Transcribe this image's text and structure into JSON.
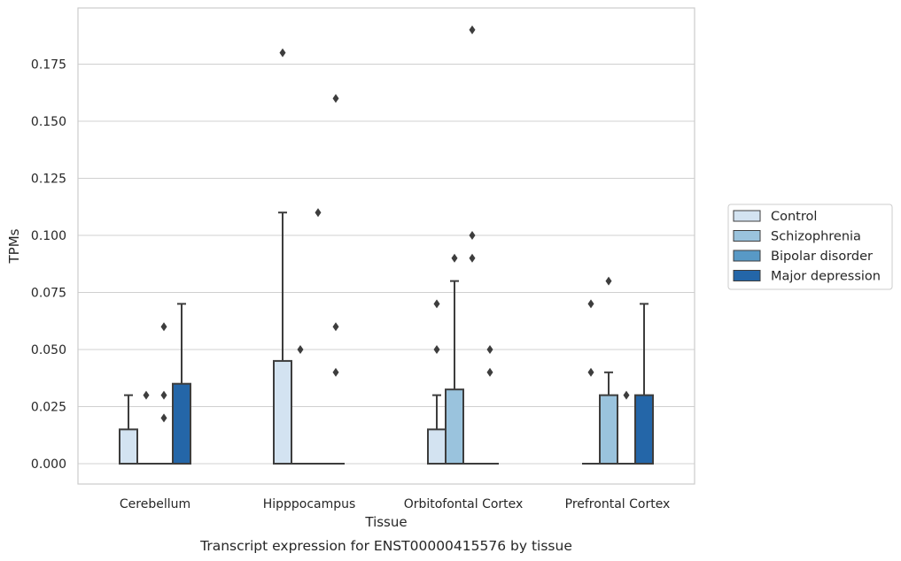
{
  "chart_data": {
    "type": "box",
    "title": "",
    "xlabel": "Tissue",
    "ylabel": "TPMs",
    "caption": "Transcript expression for ENST00000415576 by tissue",
    "ylim": [
      -0.019,
      0.199
    ],
    "yticks": [
      "0.000",
      "0.025",
      "0.050",
      "0.075",
      "0.100",
      "0.125",
      "0.150",
      "0.175"
    ],
    "grid": "horizontal",
    "legend_position": "right",
    "categories": [
      "Cerebellum",
      "Hipppocampus",
      "Orbitofontal Cortex",
      "Prefrontal Cortex"
    ],
    "series": [
      {
        "name": "Control",
        "color": "#d3e3f1",
        "boxes": [
          {
            "q1": 0.0,
            "median": 0.0,
            "q3": 0.015,
            "whisker_low": 0.0,
            "whisker_high": 0.03,
            "outliers": []
          },
          {
            "q1": 0.0,
            "median": 0.0,
            "q3": 0.045,
            "whisker_low": 0.0,
            "whisker_high": 0.11,
            "outliers": [
              0.18
            ]
          },
          {
            "q1": 0.0,
            "median": 0.0,
            "q3": 0.015,
            "whisker_low": 0.0,
            "whisker_high": 0.03,
            "outliers": [
              0.05,
              0.07
            ]
          },
          {
            "q1": 0.0,
            "median": 0.0,
            "q3": 0.0,
            "whisker_low": 0.0,
            "whisker_high": 0.0,
            "outliers": [
              0.04,
              0.07
            ]
          }
        ]
      },
      {
        "name": "Schizophrenia",
        "color": "#9ac3dd",
        "boxes": [
          {
            "q1": 0.0,
            "median": 0.0,
            "q3": 0.0,
            "whisker_low": 0.0,
            "whisker_high": 0.0,
            "outliers": [
              0.03
            ]
          },
          {
            "q1": 0.0,
            "median": 0.0,
            "q3": 0.0,
            "whisker_low": 0.0,
            "whisker_high": 0.0,
            "outliers": [
              0.05
            ]
          },
          {
            "q1": 0.0,
            "median": 0.0,
            "q3": 0.0325,
            "whisker_low": 0.0,
            "whisker_high": 0.08,
            "outliers": [
              0.09
            ]
          },
          {
            "q1": 0.0,
            "median": 0.0,
            "q3": 0.03,
            "whisker_low": 0.0,
            "whisker_high": 0.04,
            "outliers": [
              0.08
            ]
          }
        ]
      },
      {
        "name": "Bipolar disorder",
        "color": "#5899c6",
        "boxes": [
          {
            "q1": 0.0,
            "median": 0.0,
            "q3": 0.0,
            "whisker_low": 0.0,
            "whisker_high": 0.0,
            "outliers": [
              0.02,
              0.03,
              0.06
            ]
          },
          {
            "q1": 0.0,
            "median": 0.0,
            "q3": 0.0,
            "whisker_low": 0.0,
            "whisker_high": 0.0,
            "outliers": [
              0.11
            ]
          },
          {
            "q1": 0.0,
            "median": 0.0,
            "q3": 0.0,
            "whisker_low": 0.0,
            "whisker_high": 0.0,
            "outliers": [
              0.09,
              0.1,
              0.19
            ]
          },
          {
            "q1": 0.0,
            "median": 0.0,
            "q3": 0.0,
            "whisker_low": 0.0,
            "whisker_high": 0.0,
            "outliers": [
              0.03
            ]
          }
        ]
      },
      {
        "name": "Major depression",
        "color": "#2466a8",
        "boxes": [
          {
            "q1": 0.0,
            "median": 0.0,
            "q3": 0.035,
            "whisker_low": 0.0,
            "whisker_high": 0.07,
            "outliers": []
          },
          {
            "q1": 0.0,
            "median": 0.0,
            "q3": 0.0,
            "whisker_low": 0.0,
            "whisker_high": 0.0,
            "outliers": [
              0.04,
              0.06,
              0.16
            ]
          },
          {
            "q1": 0.0,
            "median": 0.0,
            "q3": 0.0,
            "whisker_low": 0.0,
            "whisker_high": 0.0,
            "outliers": [
              0.04,
              0.05
            ]
          },
          {
            "q1": 0.0,
            "median": 0.0,
            "q3": 0.03,
            "whisker_low": 0.0,
            "whisker_high": 0.07,
            "outliers": []
          }
        ]
      }
    ]
  }
}
